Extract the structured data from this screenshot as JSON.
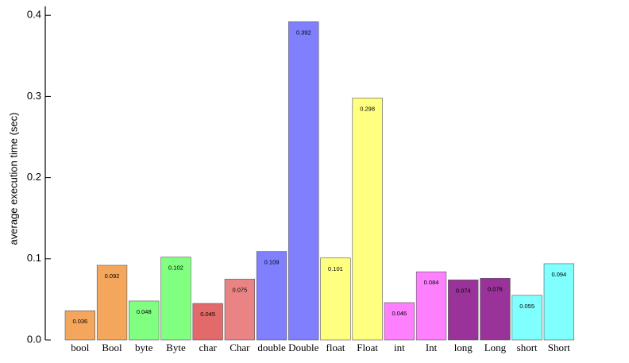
{
  "chart_data": {
    "type": "bar",
    "y_label": "average execution time (sec)",
    "categories": [
      "bool",
      "Bool",
      "byte",
      "Byte",
      "char",
      "Char",
      "double",
      "Double",
      "float",
      "Float",
      "int",
      "Int",
      "long",
      "Long",
      "short",
      "Short"
    ],
    "values": [
      0.036,
      0.092,
      0.048,
      0.102,
      0.045,
      0.075,
      0.109,
      0.392,
      0.101,
      0.298,
      0.046,
      0.084,
      0.074,
      0.076,
      0.055,
      0.094
    ],
    "colors": [
      "#f4a65c",
      "#f4a65c",
      "#80ff80",
      "#80ff80",
      "#e36a6a",
      "#ea8484",
      "#8080ff",
      "#8080ff",
      "#ffff80",
      "#ffff80",
      "#ff80ff",
      "#ff80ff",
      "#993399",
      "#993399",
      "#80ffff",
      "#80ffff"
    ],
    "ylim": [
      0,
      0.41
    ],
    "yticks": [
      {
        "value": 0,
        "label": "0.0"
      },
      0.1,
      0.2,
      0.3,
      0.4
    ]
  }
}
